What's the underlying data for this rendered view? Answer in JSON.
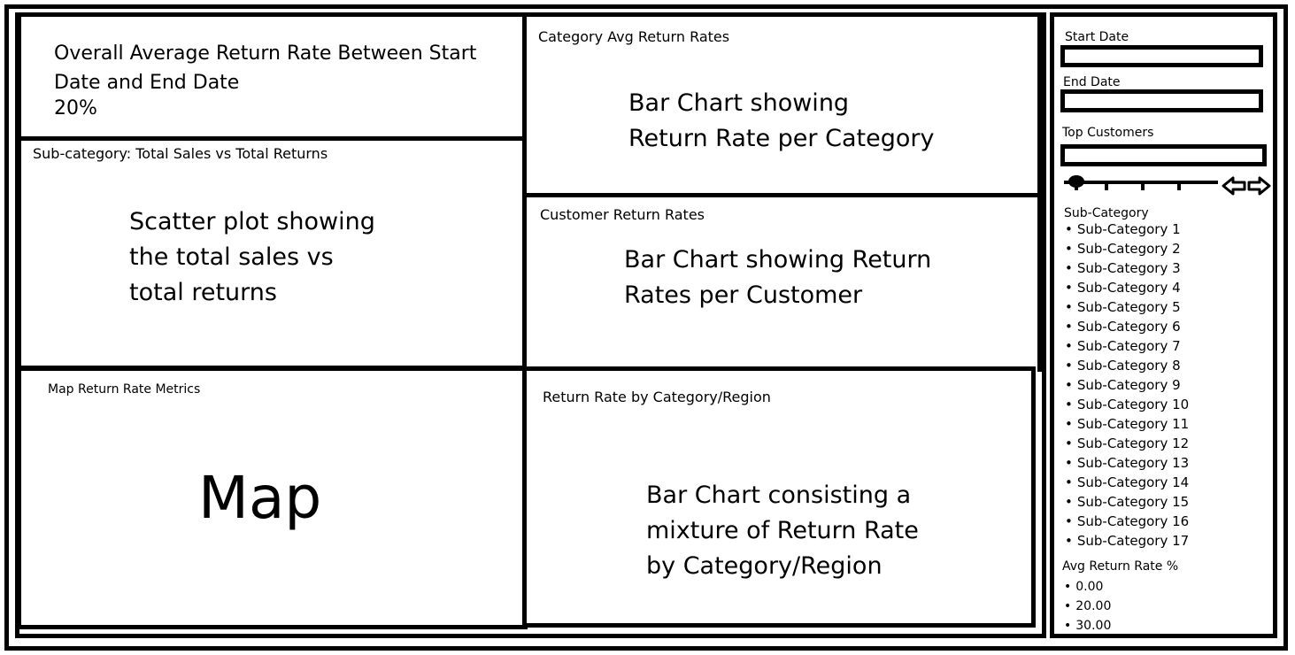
{
  "kpi": {
    "title": "Overall Average Return Rate Between Start\nDate and End Date",
    "value": "20%"
  },
  "panels": {
    "scatter": {
      "title": "Sub-category: Total Sales vs Total Returns",
      "placeholder": "Scatter plot showing\nthe total sales vs\ntotal returns"
    },
    "map": {
      "title": "Map Return Rate Metrics",
      "placeholder": "Map"
    },
    "category_avg": {
      "title": "Category Avg Return Rates",
      "placeholder": "Bar Chart showing\nReturn Rate per Category"
    },
    "customer": {
      "title": "Customer Return Rates",
      "placeholder": "Bar Chart showing Return\nRates per Customer"
    },
    "region": {
      "title": "Return Rate by Category/Region",
      "placeholder": "Bar Chart consisting a\nmixture of Return Rate\nby Category/Region"
    }
  },
  "filters": {
    "start_date_label": "Start Date",
    "start_date_value": "",
    "end_date_label": "End Date",
    "end_date_value": "",
    "top_customers_label": "Top Customers",
    "top_customers_value": "",
    "slider_value_fraction": 0.0,
    "subcategory_label": "Sub-Category",
    "subcategories": [
      "Sub-Category 1",
      "Sub-Category 2",
      "Sub-Category 3",
      "Sub-Category 4",
      "Sub-Category 5",
      "Sub-Category 6",
      "Sub-Category 7",
      "Sub-Category 8",
      "Sub-Category 9",
      "Sub-Category 10",
      "Sub-Category 11",
      "Sub-Category 12",
      "Sub-Category 13",
      "Sub-Category 14",
      "Sub-Category 15",
      "Sub-Category 16",
      "Sub-Category 17"
    ],
    "avg_return_label": "Avg Return Rate %",
    "avg_return_options": [
      "0.00",
      "20.00",
      "30.00"
    ]
  }
}
